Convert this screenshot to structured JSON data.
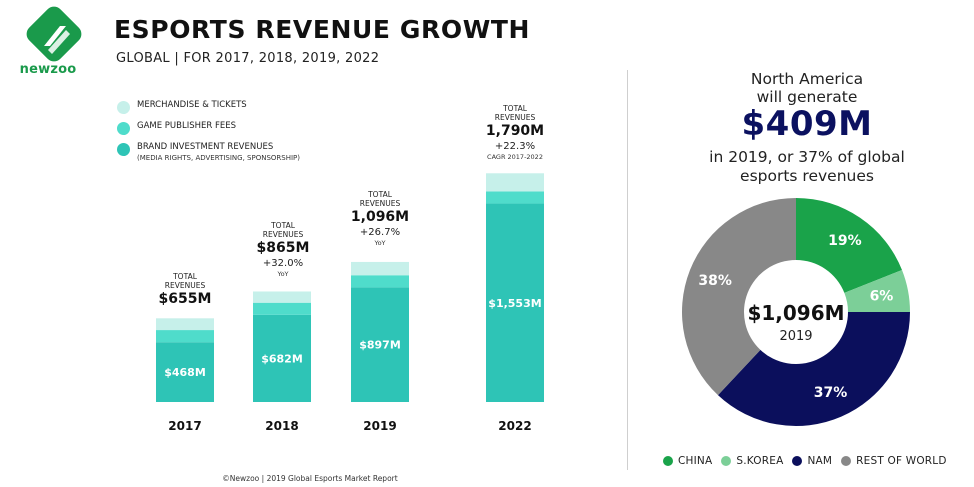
{
  "brand": {
    "name": "newzoo",
    "color": "#1a9a4b"
  },
  "header": {
    "title": "ESPORTS REVENUE GROWTH",
    "subtitle": "GLOBAL | FOR 2017, 2018, 2019, 2022"
  },
  "legend": [
    {
      "label": "MERCHANDISE & TICKETS",
      "sub": "",
      "color": "#c6f0ea"
    },
    {
      "label": "GAME PUBLISHER FEES",
      "sub": "",
      "color": "#4fdccb"
    },
    {
      "label": "BRAND INVESTMENT REVENUES",
      "sub": "(MEDIA RIGHTS, ADVERTISING, SPONSORSHIP)",
      "color": "#2ec4b6"
    }
  ],
  "annotations": [
    {
      "total_label_1": "TOTAL",
      "total_label_2": "REVENUES",
      "total": "$655M",
      "growth": "",
      "tag": ""
    },
    {
      "total_label_1": "TOTAL",
      "total_label_2": "REVENUES",
      "total": "$865M",
      "growth": "+32.0%",
      "tag": "YoY"
    },
    {
      "total_label_1": "TOTAL",
      "total_label_2": "REVENUES",
      "total": "1,096M",
      "growth": "+26.7%",
      "tag": "YoY"
    },
    {
      "total_label_1": "TOTAL",
      "total_label_2": "REVENUES",
      "total": "1,790M",
      "growth": "+22.3%",
      "tag": "CAGR 2017-2022"
    }
  ],
  "chart_data": [
    {
      "type": "bar",
      "stacked": true,
      "categories": [
        "2017",
        "2018",
        "2019",
        "2022"
      ],
      "totals": [
        655,
        865,
        1096,
        1790
      ],
      "series": [
        {
          "name": "BRAND INVESTMENT REVENUES",
          "values": [
            468,
            682,
            897,
            1553
          ],
          "labels": [
            "$468M",
            "$682M",
            "$897M",
            "$1,553M"
          ],
          "color": "#2ec4b6"
        },
        {
          "name": "GAME PUBLISHER FEES",
          "values": [
            95,
            95,
            95,
            95
          ],
          "color": "#4fdccb"
        },
        {
          "name": "MERCHANDISE & TICKETS",
          "values": [
            92,
            88,
            104,
            142
          ],
          "color": "#c6f0ea"
        }
      ],
      "ylim": [
        0,
        1800
      ]
    },
    {
      "type": "pie",
      "donut": true,
      "title": "$1,096M",
      "subtitle": "2019",
      "slices": [
        {
          "name": "CHINA",
          "value": 19,
          "label": "19%",
          "color": "#1aa34a"
        },
        {
          "name": "S.KOREA",
          "value": 6,
          "label": "6%",
          "color": "#7ccf98"
        },
        {
          "name": "NAM",
          "value": 37,
          "label": "37%",
          "color": "#0b0f5c"
        },
        {
          "name": "REST OF WORLD",
          "value": 38,
          "label": "38%",
          "color": "#888888"
        }
      ]
    }
  ],
  "callout": {
    "line1": "North America",
    "line2": "will generate",
    "value": "$409M",
    "line3": "in 2019, or 37% of global",
    "line4": "esports revenues"
  },
  "footer": "©Newzoo | 2019 Global Esports Market Report"
}
